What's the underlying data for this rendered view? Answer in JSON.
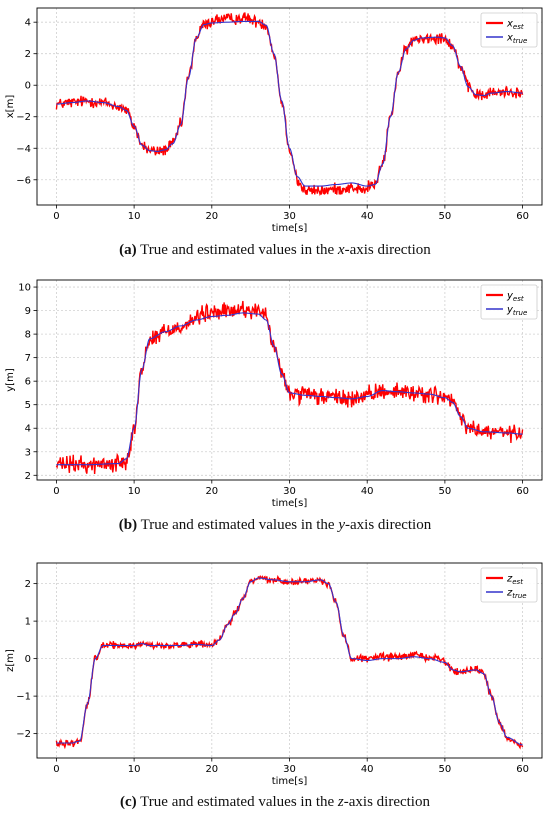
{
  "chart_data": [
    {
      "id": "a",
      "type": "line",
      "xlabel": "time[s]",
      "ylabel": "x[m]",
      "xlim": [
        -2.5,
        62.5
      ],
      "ylim": [
        -7.6,
        4.9
      ],
      "xticks": [
        0,
        10,
        20,
        30,
        40,
        50,
        60
      ],
      "yticks": [
        -6,
        -4,
        -2,
        0,
        2,
        4
      ],
      "grid": true,
      "legend_placement": "top-right",
      "noise": 0.28,
      "series": [
        {
          "name": "x",
          "sub": "est",
          "color": "#ff0000",
          "role": "estimate"
        },
        {
          "name": "x",
          "sub": "true",
          "color": "#3333cc",
          "role": "truth"
        }
      ],
      "true_points": [
        [
          0,
          -1.2
        ],
        [
          2,
          -1.1
        ],
        [
          4,
          -1.0
        ],
        [
          6,
          -1.1
        ],
        [
          8,
          -1.35
        ],
        [
          9,
          -1.6
        ],
        [
          10,
          -2.6
        ],
        [
          11,
          -3.8
        ],
        [
          12,
          -4.15
        ],
        [
          13,
          -4.2
        ],
        [
          14,
          -4.1
        ],
        [
          15,
          -3.7
        ],
        [
          16,
          -2.5
        ],
        [
          17,
          0.5
        ],
        [
          18,
          3.0
        ],
        [
          19,
          3.85
        ],
        [
          20,
          3.95
        ],
        [
          22,
          4.0
        ],
        [
          24,
          4.05
        ],
        [
          26,
          4.05
        ],
        [
          27,
          3.8
        ],
        [
          28,
          2.0
        ],
        [
          29,
          -1.0
        ],
        [
          30,
          -4.0
        ],
        [
          31,
          -5.8
        ],
        [
          32,
          -6.4
        ],
        [
          34,
          -6.4
        ],
        [
          36,
          -6.3
        ],
        [
          38,
          -6.2
        ],
        [
          40,
          -6.4
        ],
        [
          41,
          -6.3
        ],
        [
          42,
          -5.0
        ],
        [
          43,
          -2.0
        ],
        [
          44,
          0.8
        ],
        [
          45,
          2.3
        ],
        [
          46,
          2.85
        ],
        [
          47,
          3.0
        ],
        [
          49,
          3.05
        ],
        [
          50,
          3.0
        ],
        [
          51,
          2.5
        ],
        [
          52,
          1.2
        ],
        [
          53,
          -0.1
        ],
        [
          54,
          -0.6
        ],
        [
          55,
          -0.65
        ],
        [
          56,
          -0.5
        ],
        [
          58,
          -0.4
        ],
        [
          60,
          -0.5
        ]
      ],
      "est_offsets": [
        [
          20,
          25,
          0.2
        ],
        [
          31,
          40,
          -0.3
        ]
      ]
    },
    {
      "id": "b",
      "type": "line",
      "xlabel": "time[s]",
      "ylabel": "y[m]",
      "xlim": [
        -2.5,
        62.5
      ],
      "ylim": [
        1.8,
        10.3
      ],
      "xticks": [
        0,
        10,
        20,
        30,
        40,
        50,
        60
      ],
      "yticks": [
        2,
        3,
        4,
        5,
        6,
        7,
        8,
        9,
        10
      ],
      "grid": true,
      "legend_placement": "top-right",
      "noise": 0.28,
      "series": [
        {
          "name": "y",
          "sub": "est",
          "color": "#ff0000",
          "role": "estimate"
        },
        {
          "name": "y",
          "sub": "true",
          "color": "#3333cc",
          "role": "truth"
        }
      ],
      "true_points": [
        [
          0,
          2.45
        ],
        [
          4,
          2.45
        ],
        [
          8,
          2.5
        ],
        [
          9,
          2.7
        ],
        [
          10,
          4.0
        ],
        [
          11,
          6.5
        ],
        [
          12,
          7.8
        ],
        [
          14,
          8.1
        ],
        [
          16,
          8.35
        ],
        [
          18,
          8.6
        ],
        [
          20,
          8.75
        ],
        [
          22,
          8.8
        ],
        [
          24,
          8.9
        ],
        [
          26,
          8.85
        ],
        [
          27,
          8.6
        ],
        [
          28,
          7.5
        ],
        [
          29,
          6.3
        ],
        [
          30,
          5.5
        ],
        [
          32,
          5.4
        ],
        [
          34,
          5.35
        ],
        [
          36,
          5.3
        ],
        [
          38,
          5.25
        ],
        [
          40,
          5.35
        ],
        [
          42,
          5.6
        ],
        [
          44,
          5.55
        ],
        [
          46,
          5.5
        ],
        [
          48,
          5.45
        ],
        [
          50,
          5.3
        ],
        [
          51,
          5.1
        ],
        [
          52,
          4.5
        ],
        [
          53,
          4.0
        ],
        [
          55,
          3.85
        ],
        [
          58,
          3.8
        ],
        [
          60,
          3.75
        ]
      ],
      "est_offsets": [
        [
          18,
          27,
          0.15
        ]
      ]
    },
    {
      "id": "c",
      "type": "line",
      "xlabel": "time[s]",
      "ylabel": "z[m]",
      "xlim": [
        -2.5,
        62.5
      ],
      "ylim": [
        -2.65,
        2.55
      ],
      "xticks": [
        0,
        10,
        20,
        30,
        40,
        50,
        60
      ],
      "yticks": [
        -2,
        -1,
        0,
        1,
        2
      ],
      "grid": true,
      "legend_placement": "top-right",
      "noise": 0.07,
      "series": [
        {
          "name": "z",
          "sub": "est",
          "color": "#ff0000",
          "role": "estimate"
        },
        {
          "name": "z",
          "sub": "true",
          "color": "#3333cc",
          "role": "truth"
        }
      ],
      "true_points": [
        [
          0,
          -2.25
        ],
        [
          2,
          -2.25
        ],
        [
          3,
          -2.2
        ],
        [
          4,
          -1.2
        ],
        [
          5,
          0.0
        ],
        [
          6,
          0.35
        ],
        [
          8,
          0.35
        ],
        [
          10,
          0.35
        ],
        [
          11,
          0.4
        ],
        [
          12,
          0.35
        ],
        [
          14,
          0.35
        ],
        [
          16,
          0.35
        ],
        [
          18,
          0.38
        ],
        [
          20,
          0.35
        ],
        [
          21,
          0.5
        ],
        [
          22,
          0.9
        ],
        [
          23,
          1.2
        ],
        [
          24,
          1.6
        ],
        [
          25,
          2.05
        ],
        [
          26,
          2.15
        ],
        [
          28,
          2.1
        ],
        [
          30,
          2.05
        ],
        [
          32,
          2.05
        ],
        [
          34,
          2.1
        ],
        [
          35,
          2.0
        ],
        [
          36,
          1.5
        ],
        [
          37,
          0.6
        ],
        [
          38,
          0.0
        ],
        [
          40,
          -0.05
        ],
        [
          42,
          0.0
        ],
        [
          44,
          0.0
        ],
        [
          46,
          0.05
        ],
        [
          48,
          0.0
        ],
        [
          50,
          -0.1
        ],
        [
          51,
          -0.3
        ],
        [
          52,
          -0.35
        ],
        [
          54,
          -0.3
        ],
        [
          55,
          -0.4
        ],
        [
          56,
          -1.0
        ],
        [
          57,
          -1.7
        ],
        [
          58,
          -2.1
        ],
        [
          60,
          -2.3
        ]
      ],
      "est_offsets": [
        [
          39,
          50,
          0.05
        ]
      ]
    }
  ],
  "captions": [
    {
      "label": "(a)",
      "before": "True and estimated values in the ",
      "var": "x",
      "after": "-axis direction"
    },
    {
      "label": "(b)",
      "before": "True and estimated values in the ",
      "var": "y",
      "after": "-axis direction"
    },
    {
      "label": "(c)",
      "before": "True and estimated values in the ",
      "var": "z",
      "after": "-axis direction"
    }
  ]
}
